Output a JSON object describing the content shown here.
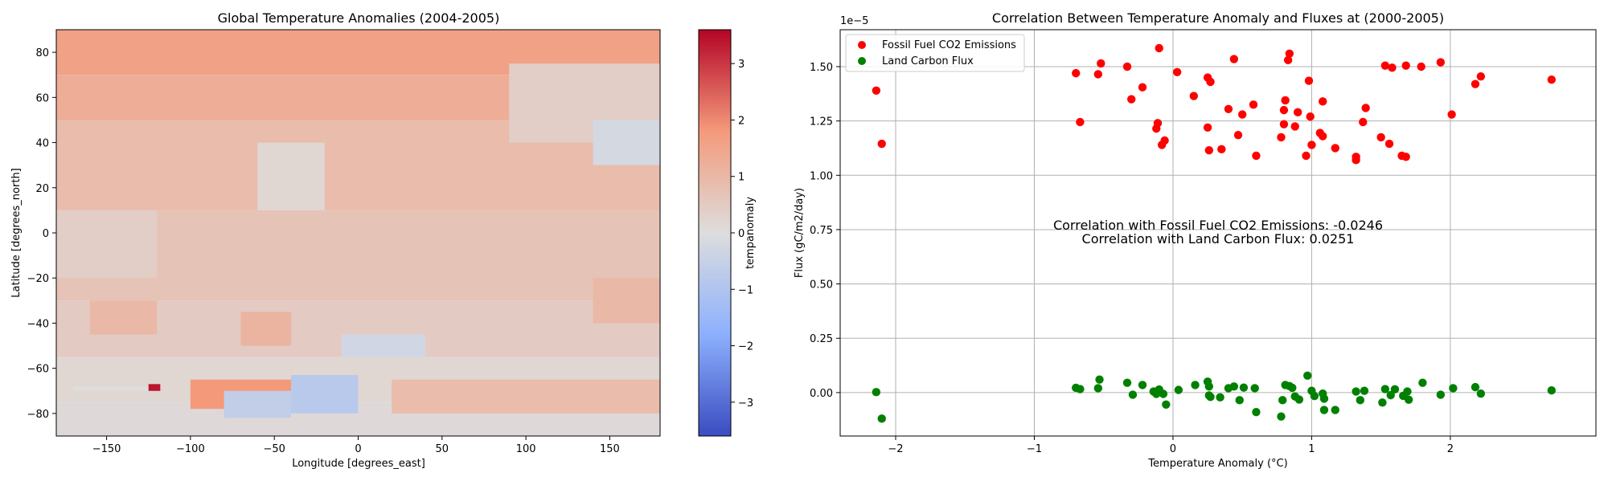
{
  "chart_data": [
    {
      "type": "heatmap",
      "title": "Global Temperature Anomalies (2004-2005)",
      "xlabel": "Longitude [degrees_east]",
      "ylabel": "Latitude [degrees_north]",
      "xlim": [
        -180,
        180
      ],
      "ylim": [
        -90,
        90
      ],
      "x_ticks": [
        -150,
        -100,
        -50,
        0,
        50,
        100,
        150
      ],
      "y_ticks": [
        80,
        60,
        40,
        20,
        0,
        -20,
        -40,
        -60,
        -80
      ],
      "x_tick_labels": [
        "−150",
        "−100",
        "−50",
        "0",
        "50",
        "100",
        "150"
      ],
      "y_tick_labels": [
        "80",
        "60",
        "40",
        "20",
        "0",
        "−20",
        "−40",
        "−60",
        "−80"
      ],
      "colorbar": {
        "label": "tempanomaly",
        "range": [
          -3.6,
          3.6
        ],
        "ticks": [
          3,
          2,
          1,
          0,
          -1,
          -2,
          -3
        ],
        "tick_labels": [
          "3",
          "2",
          "1",
          "0",
          "−1",
          "−2",
          "−3"
        ],
        "colormap": "coolwarm",
        "colors": [
          "#3b4cc0",
          "#dddddd",
          "#b40426"
        ]
      },
      "regions": [
        {
          "lat": [
            70,
            90
          ],
          "lon": [
            -180,
            180
          ],
          "value": 1.6
        },
        {
          "lat": [
            50,
            70
          ],
          "lon": [
            -180,
            180
          ],
          "value": 1.3
        },
        {
          "lat": [
            10,
            50
          ],
          "lon": [
            -180,
            180
          ],
          "value": 0.9
        },
        {
          "lat": [
            -30,
            10
          ],
          "lon": [
            -180,
            180
          ],
          "value": 0.7
        },
        {
          "lat": [
            -55,
            -30
          ],
          "lon": [
            -180,
            180
          ],
          "value": 0.5
        },
        {
          "lat": [
            -75,
            -55
          ],
          "lon": [
            -180,
            180
          ],
          "value": 0.2
        },
        {
          "lat": [
            -90,
            -75
          ],
          "lon": [
            -180,
            180
          ],
          "value": 0.1
        },
        {
          "lat": [
            40,
            75
          ],
          "lon": [
            90,
            180
          ],
          "value": 0.4
        },
        {
          "lat": [
            30,
            50
          ],
          "lon": [
            140,
            180
          ],
          "value": -0.2
        },
        {
          "lat": [
            10,
            40
          ],
          "lon": [
            -60,
            -20
          ],
          "value": 0.2
        },
        {
          "lat": [
            -20,
            10
          ],
          "lon": [
            -180,
            -120
          ],
          "value": 0.4
        },
        {
          "lat": [
            -45,
            -30
          ],
          "lon": [
            -160,
            -120
          ],
          "value": 1.0
        },
        {
          "lat": [
            -40,
            -20
          ],
          "lon": [
            140,
            180
          ],
          "value": 1.0
        },
        {
          "lat": [
            -50,
            -35
          ],
          "lon": [
            -70,
            -40
          ],
          "value": 1.1
        },
        {
          "lat": [
            -78,
            -65
          ],
          "lon": [
            -100,
            -40
          ],
          "value": 1.8
        },
        {
          "lat": [
            -80,
            -63
          ],
          "lon": [
            -40,
            0
          ],
          "value": -0.8
        },
        {
          "lat": [
            -82,
            -70
          ],
          "lon": [
            -80,
            -40
          ],
          "value": -0.6
        },
        {
          "lat": [
            -80,
            -65
          ],
          "lon": [
            20,
            180
          ],
          "value": 0.9
        },
        {
          "lat": [
            -55,
            -45
          ],
          "lon": [
            -10,
            40
          ],
          "value": -0.3
        },
        {
          "lat": [
            -70,
            -68
          ],
          "lon": [
            -170,
            -125
          ],
          "value": 0.0
        },
        {
          "lat": [
            -70,
            -67
          ],
          "lon": [
            -125,
            -118
          ],
          "value": 3.4
        }
      ]
    },
    {
      "type": "scatter",
      "title": "Correlation Between Temperature Anomaly and Fluxes at  (2000-2005)",
      "xlabel": "Temperature Anomaly (°C)",
      "ylabel": "Flux (gC/m2/day)",
      "offset_text": "1e−5",
      "xlim": [
        -2.4,
        3.05
      ],
      "ylim": [
        -2e-06,
        1.67e-05
      ],
      "x_ticks": [
        -2,
        -1,
        0,
        1,
        2
      ],
      "x_tick_labels": [
        "−2",
        "−1",
        "0",
        "1",
        "2"
      ],
      "y_ticks": [
        0,
        2.5e-06,
        5e-06,
        7.5e-06,
        1e-05,
        1.25e-05,
        1.5e-05
      ],
      "y_tick_labels": [
        "0.00",
        "0.25",
        "0.50",
        "0.75",
        "1.00",
        "1.25",
        "1.50"
      ],
      "grid": true,
      "legend_position": "top-left",
      "annotations": [
        "Correlation with Fossil Fuel CO2 Emissions: -0.0246",
        "Correlation with Land Carbon Flux: 0.0251"
      ],
      "series": [
        {
          "name": "Fossil Fuel CO2 Emissions",
          "color": "#ff0000",
          "points": [
            [
              -2.14,
              1.39e-05
            ],
            [
              -2.1,
              1.145e-05
            ],
            [
              -0.7,
              1.47e-05
            ],
            [
              -0.67,
              1.245e-05
            ],
            [
              -0.54,
              1.465e-05
            ],
            [
              -0.52,
              1.515e-05
            ],
            [
              -0.33,
              1.5e-05
            ],
            [
              -0.3,
              1.35e-05
            ],
            [
              -0.22,
              1.405e-05
            ],
            [
              -0.12,
              1.215e-05
            ],
            [
              -0.11,
              1.24e-05
            ],
            [
              -0.1,
              1.585e-05
            ],
            [
              -0.08,
              1.14e-05
            ],
            [
              -0.06,
              1.16e-05
            ],
            [
              0.03,
              1.475e-05
            ],
            [
              0.15,
              1.365e-05
            ],
            [
              0.25,
              1.22e-05
            ],
            [
              0.25,
              1.45e-05
            ],
            [
              0.27,
              1.43e-05
            ],
            [
              0.26,
              1.115e-05
            ],
            [
              0.35,
              1.12e-05
            ],
            [
              0.4,
              1.305e-05
            ],
            [
              0.44,
              1.535e-05
            ],
            [
              0.47,
              1.185e-05
            ],
            [
              0.5,
              1.28e-05
            ],
            [
              0.58,
              1.325e-05
            ],
            [
              0.6,
              1.09e-05
            ],
            [
              0.78,
              1.175e-05
            ],
            [
              0.8,
              1.235e-05
            ],
            [
              0.8,
              1.3e-05
            ],
            [
              0.81,
              1.345e-05
            ],
            [
              0.83,
              1.53e-05
            ],
            [
              0.84,
              1.56e-05
            ],
            [
              0.88,
              1.225e-05
            ],
            [
              0.9,
              1.29e-05
            ],
            [
              0.96,
              1.09e-05
            ],
            [
              0.98,
              1.435e-05
            ],
            [
              0.99,
              1.27e-05
            ],
            [
              1.0,
              1.14e-05
            ],
            [
              1.06,
              1.195e-05
            ],
            [
              1.08,
              1.18e-05
            ],
            [
              1.08,
              1.34e-05
            ],
            [
              1.17,
              1.125e-05
            ],
            [
              1.32,
              1.085e-05
            ],
            [
              1.32,
              1.07e-05
            ],
            [
              1.37,
              1.245e-05
            ],
            [
              1.39,
              1.31e-05
            ],
            [
              1.5,
              1.175e-05
            ],
            [
              1.53,
              1.505e-05
            ],
            [
              1.56,
              1.145e-05
            ],
            [
              1.58,
              1.495e-05
            ],
            [
              1.65,
              1.09e-05
            ],
            [
              1.68,
              1.085e-05
            ],
            [
              1.68,
              1.505e-05
            ],
            [
              1.79,
              1.5e-05
            ],
            [
              1.93,
              1.52e-05
            ],
            [
              2.01,
              1.28e-05
            ],
            [
              2.18,
              1.42e-05
            ],
            [
              2.22,
              1.455e-05
            ],
            [
              2.73,
              1.44e-05
            ]
          ]
        },
        {
          "name": "Land Carbon Flux",
          "color": "#008000",
          "points": [
            [
              -2.14,
              2e-08
            ],
            [
              -2.1,
              -1.2e-06
            ],
            [
              -0.7,
              2.2e-07
            ],
            [
              -0.67,
              1.6e-07
            ],
            [
              -0.54,
              2e-07
            ],
            [
              -0.53,
              6e-07
            ],
            [
              -0.33,
              4.5e-07
            ],
            [
              -0.29,
              -1e-07
            ],
            [
              -0.22,
              3.5e-07
            ],
            [
              -0.14,
              5e-08
            ],
            [
              -0.12,
              -6e-08
            ],
            [
              -0.1,
              1.4e-07
            ],
            [
              -0.07,
              -6e-08
            ],
            [
              -0.05,
              -5.5e-07
            ],
            [
              0.04,
              1.2e-07
            ],
            [
              0.16,
              3.5e-07
            ],
            [
              0.25,
              5e-07
            ],
            [
              0.26,
              -1.3e-07
            ],
            [
              0.26,
              2.8e-07
            ],
            [
              0.27,
              -2e-07
            ],
            [
              0.34,
              -2.2e-07
            ],
            [
              0.4,
              2e-07
            ],
            [
              0.44,
              2.8e-07
            ],
            [
              0.48,
              -3.5e-07
            ],
            [
              0.51,
              2.3e-07
            ],
            [
              0.59,
              2e-07
            ],
            [
              0.6,
              -9e-07
            ],
            [
              0.78,
              -1.1e-06
            ],
            [
              0.79,
              -3.5e-07
            ],
            [
              0.81,
              3.5e-07
            ],
            [
              0.84,
              3e-07
            ],
            [
              0.86,
              2.2e-07
            ],
            [
              0.88,
              -1.8e-07
            ],
            [
              0.91,
              -3.2e-07
            ],
            [
              0.97,
              7.8e-07
            ],
            [
              1.0,
              8e-08
            ],
            [
              1.02,
              -1.6e-07
            ],
            [
              1.08,
              -5e-08
            ],
            [
              1.09,
              -2.8e-07
            ],
            [
              1.09,
              -8e-07
            ],
            [
              1.17,
              -8e-07
            ],
            [
              1.32,
              5e-08
            ],
            [
              1.35,
              -3.5e-07
            ],
            [
              1.38,
              8e-08
            ],
            [
              1.51,
              -4.6e-07
            ],
            [
              1.53,
              1.6e-07
            ],
            [
              1.57,
              -1.2e-07
            ],
            [
              1.6,
              1.5e-07
            ],
            [
              1.66,
              -1.5e-07
            ],
            [
              1.69,
              5e-08
            ],
            [
              1.7,
              -3.3e-07
            ],
            [
              1.8,
              4.5e-07
            ],
            [
              1.93,
              -1e-07
            ],
            [
              2.02,
              2e-07
            ],
            [
              2.18,
              2.5e-07
            ],
            [
              2.22,
              -5e-08
            ],
            [
              2.73,
              1e-07
            ]
          ]
        }
      ]
    }
  ]
}
